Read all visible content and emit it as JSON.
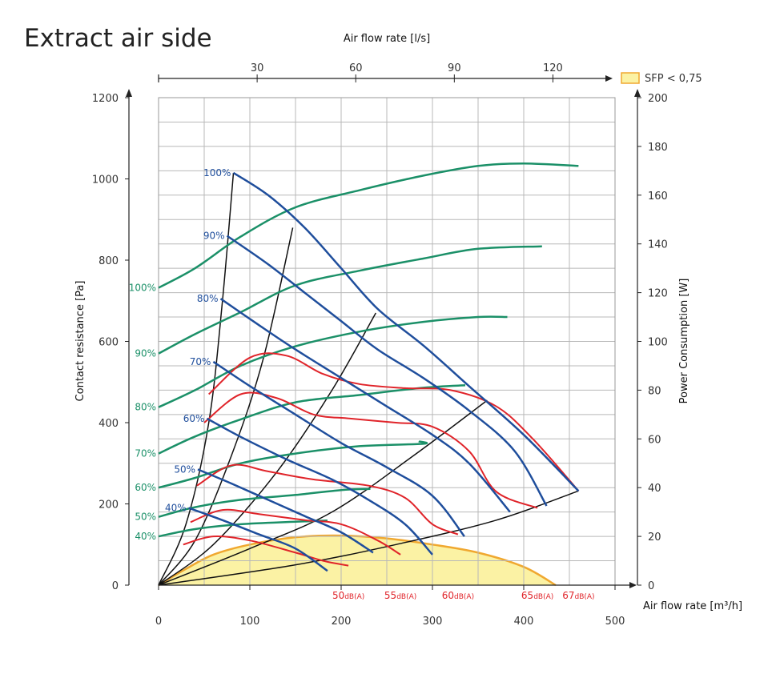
{
  "title": "Extract air side",
  "colors": {
    "fan": "#1f4e9c",
    "power": "#1b9068",
    "noise": "#e0242a",
    "system": "#111111",
    "sfp_fill": "#fbf2a4",
    "sfp_stroke": "#f0a830",
    "grid": "#b8b8b8"
  },
  "chart_data": {
    "type": "line",
    "title": "Extract air side",
    "xlabel": "Air flow rate [m³/h]",
    "x2label": "Air flow rate [l/s]",
    "ylabel": "Contact resistance [Pa]",
    "y2label": "Power Consumption [W]",
    "xlim": [
      0,
      500
    ],
    "ylim": [
      0,
      1200
    ],
    "y2lim": [
      0,
      200
    ],
    "x2lim": [
      0,
      138.9
    ],
    "x_ticks": [
      0,
      100,
      200,
      300,
      400,
      500
    ],
    "y_ticks": [
      0,
      200,
      400,
      600,
      800,
      1000,
      1200
    ],
    "x2_ticks": [
      30,
      60,
      90,
      120
    ],
    "y2_ticks": [
      0,
      20,
      40,
      60,
      80,
      100,
      120,
      140,
      160,
      180,
      200
    ],
    "grid": true,
    "legend": {
      "label": "SFP < 0,75",
      "placement": "top-right"
    },
    "fan_curves": [
      {
        "label": "100%",
        "points": [
          [
            82,
            1015
          ],
          [
            120,
            960
          ],
          [
            160,
            880
          ],
          [
            200,
            780
          ],
          [
            240,
            680
          ],
          [
            290,
            590
          ],
          [
            340,
            490
          ],
          [
            400,
            370
          ],
          [
            460,
            232
          ]
        ]
      },
      {
        "label": "90%",
        "points": [
          [
            75,
            860
          ],
          [
            120,
            790
          ],
          [
            160,
            720
          ],
          [
            200,
            650
          ],
          [
            240,
            580
          ],
          [
            290,
            510
          ],
          [
            340,
            430
          ],
          [
            390,
            330
          ],
          [
            425,
            195
          ]
        ]
      },
      {
        "label": "80%",
        "points": [
          [
            68,
            705
          ],
          [
            110,
            640
          ],
          [
            150,
            580
          ],
          [
            200,
            510
          ],
          [
            250,
            440
          ],
          [
            300,
            370
          ],
          [
            340,
            300
          ],
          [
            385,
            180
          ]
        ]
      },
      {
        "label": "70%",
        "points": [
          [
            60,
            550
          ],
          [
            100,
            490
          ],
          [
            150,
            420
          ],
          [
            200,
            350
          ],
          [
            250,
            290
          ],
          [
            300,
            220
          ],
          [
            335,
            120
          ]
        ]
      },
      {
        "label": "60%",
        "points": [
          [
            53,
            410
          ],
          [
            90,
            365
          ],
          [
            140,
            310
          ],
          [
            190,
            260
          ],
          [
            230,
            210
          ],
          [
            270,
            150
          ],
          [
            300,
            75
          ]
        ]
      },
      {
        "label": "50%",
        "points": [
          [
            43,
            285
          ],
          [
            80,
            250
          ],
          [
            120,
            210
          ],
          [
            160,
            170
          ],
          [
            200,
            130
          ],
          [
            235,
            80
          ]
        ]
      },
      {
        "label": "40%",
        "points": [
          [
            33,
            190
          ],
          [
            70,
            160
          ],
          [
            110,
            125
          ],
          [
            150,
            90
          ],
          [
            185,
            35
          ]
        ]
      }
    ],
    "power_curves": [
      {
        "label": "100%",
        "points": [
          [
            0,
            122
          ],
          [
            40,
            130
          ],
          [
            90,
            143
          ],
          [
            150,
            155
          ],
          [
            220,
            162
          ],
          [
            290,
            168
          ],
          [
            350,
            172
          ],
          [
            400,
            173
          ],
          [
            460,
            172
          ]
        ]
      },
      {
        "label": "90%",
        "points": [
          [
            0,
            95
          ],
          [
            40,
            103
          ],
          [
            90,
            112
          ],
          [
            150,
            123
          ],
          [
            220,
            129
          ],
          [
            290,
            134
          ],
          [
            350,
            138
          ],
          [
            420,
            139
          ]
        ]
      },
      {
        "label": "80%",
        "points": [
          [
            0,
            73
          ],
          [
            40,
            80
          ],
          [
            90,
            90
          ],
          [
            150,
            98
          ],
          [
            220,
            104
          ],
          [
            290,
            108
          ],
          [
            350,
            110
          ],
          [
            382,
            110
          ]
        ]
      },
      {
        "label": "70%",
        "points": [
          [
            0,
            54
          ],
          [
            40,
            61
          ],
          [
            90,
            68
          ],
          [
            150,
            75
          ],
          [
            220,
            78
          ],
          [
            290,
            81
          ],
          [
            336,
            82
          ]
        ]
      },
      {
        "label": "60%",
        "points": [
          [
            0,
            40
          ],
          [
            40,
            44
          ],
          [
            90,
            50
          ],
          [
            150,
            54
          ],
          [
            220,
            57
          ],
          [
            290,
            58
          ],
          [
            285,
            59
          ]
        ]
      },
      {
        "label": "50%",
        "points": [
          [
            0,
            28
          ],
          [
            40,
            32
          ],
          [
            90,
            35
          ],
          [
            150,
            37
          ],
          [
            200,
            39
          ],
          [
            232,
            39.5
          ]
        ]
      },
      {
        "label": "40%",
        "points": [
          [
            0,
            20
          ],
          [
            40,
            23
          ],
          [
            90,
            25
          ],
          [
            150,
            26
          ],
          [
            185,
            26.5
          ]
        ]
      }
    ],
    "noise_curves": [
      {
        "label": "50",
        "unit": "dB(A)",
        "points": [
          [
            27,
            100
          ],
          [
            60,
            120
          ],
          [
            100,
            110
          ],
          [
            150,
            80
          ],
          [
            180,
            60
          ],
          [
            208,
            48
          ]
        ]
      },
      {
        "label": "55",
        "unit": "dB(A)",
        "points": [
          [
            35,
            155
          ],
          [
            70,
            185
          ],
          [
            110,
            175
          ],
          [
            160,
            160
          ],
          [
            200,
            150
          ],
          [
            240,
            110
          ],
          [
            265,
            75
          ]
        ]
      },
      {
        "label": "60",
        "unit": "dB(A)",
        "points": [
          [
            42,
            245
          ],
          [
            80,
            295
          ],
          [
            120,
            280
          ],
          [
            170,
            260
          ],
          [
            230,
            245
          ],
          [
            270,
            215
          ],
          [
            300,
            150
          ],
          [
            328,
            125
          ]
        ]
      },
      {
        "label": "65",
        "unit": "dB(A)",
        "points": [
          [
            50,
            400
          ],
          [
            90,
            470
          ],
          [
            130,
            460
          ],
          [
            170,
            420
          ],
          [
            210,
            410
          ],
          [
            260,
            400
          ],
          [
            300,
            390
          ],
          [
            340,
            330
          ],
          [
            370,
            230
          ],
          [
            415,
            190
          ]
        ]
      },
      {
        "label": "67",
        "unit": "dB(A)",
        "points": [
          [
            55,
            470
          ],
          [
            100,
            560
          ],
          [
            140,
            565
          ],
          [
            180,
            520
          ],
          [
            220,
            495
          ],
          [
            270,
            485
          ],
          [
            320,
            480
          ],
          [
            370,
            440
          ],
          [
            410,
            360
          ],
          [
            460,
            232
          ]
        ]
      }
    ],
    "system_curves": [
      {
        "points": [
          [
            0,
            0
          ],
          [
            30,
            150
          ],
          [
            55,
            400
          ],
          [
            70,
            700
          ],
          [
            82,
            1015
          ]
        ]
      },
      {
        "points": [
          [
            0,
            0
          ],
          [
            40,
            110
          ],
          [
            80,
            320
          ],
          [
            115,
            560
          ],
          [
            147,
            880
          ]
        ]
      },
      {
        "points": [
          [
            0,
            0
          ],
          [
            60,
            100
          ],
          [
            130,
            280
          ],
          [
            190,
            480
          ],
          [
            238,
            670
          ]
        ]
      },
      {
        "points": [
          [
            0,
            0
          ],
          [
            100,
            90
          ],
          [
            190,
            180
          ],
          [
            280,
            320
          ],
          [
            360,
            455
          ]
        ]
      },
      {
        "points": [
          [
            0,
            0
          ],
          [
            150,
            50
          ],
          [
            260,
            100
          ],
          [
            370,
            160
          ],
          [
            460,
            232
          ]
        ]
      }
    ],
    "sfp_area": {
      "points": [
        [
          0,
          0
        ],
        [
          30,
          40
        ],
        [
          60,
          75
        ],
        [
          100,
          100
        ],
        [
          150,
          118
        ],
        [
          200,
          122
        ],
        [
          250,
          115
        ],
        [
          300,
          100
        ],
        [
          350,
          80
        ],
        [
          400,
          45
        ],
        [
          435,
          0
        ]
      ]
    }
  }
}
